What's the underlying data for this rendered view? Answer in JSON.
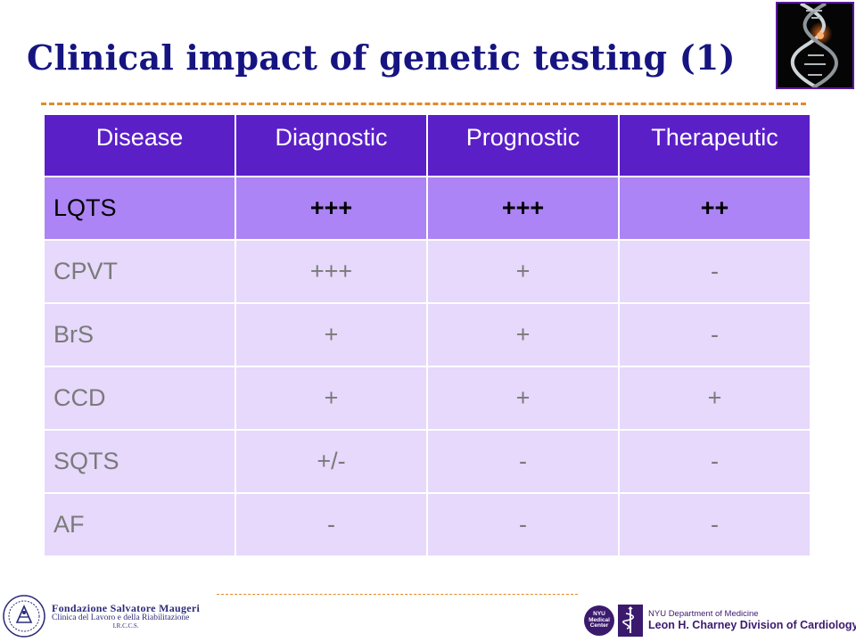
{
  "slide": {
    "title": "Clinical impact of genetic testing (1)"
  },
  "table": {
    "headers": [
      "Disease",
      "Diagnostic",
      "Prognostic",
      "Therapeutic"
    ],
    "rows": [
      {
        "disease": "LQTS",
        "diagnostic": "+++",
        "prognostic": "+++",
        "therapeutic": "++"
      },
      {
        "disease": "CPVT",
        "diagnostic": "+++",
        "prognostic": "+",
        "therapeutic": "-"
      },
      {
        "disease": "BrS",
        "diagnostic": "+",
        "prognostic": "+",
        "therapeutic": "-"
      },
      {
        "disease": "CCD",
        "diagnostic": "+",
        "prognostic": "+",
        "therapeutic": "+"
      },
      {
        "disease": "SQTS",
        "diagnostic": "+/-",
        "prognostic": "-",
        "therapeutic": "-"
      },
      {
        "disease": "AF",
        "diagnostic": "-",
        "prognostic": "-",
        "therapeutic": "-"
      }
    ]
  },
  "footer": {
    "left_logo": {
      "line1": "Fondazione Salvatore Maugeri",
      "line2": "Clinica del Lavoro e della Riabilitazione",
      "line3": "I.R.C.C.S."
    },
    "right_logo": {
      "badge": "NYU Medical Center",
      "department": "NYU Department of Medicine",
      "division": "Leon H. Charney Division of Cardiology"
    }
  },
  "colors": {
    "title": "#161480",
    "header_bg": "#5b1fc8",
    "highlight_row_bg": "#ad84f5",
    "row_bg": "#e6d9fb",
    "dash": "#e08a2a"
  },
  "icons": [
    "dna-helix-photo",
    "foundation-seal-icon",
    "nyu-medical-center-badge",
    "medical-staff-icon"
  ]
}
